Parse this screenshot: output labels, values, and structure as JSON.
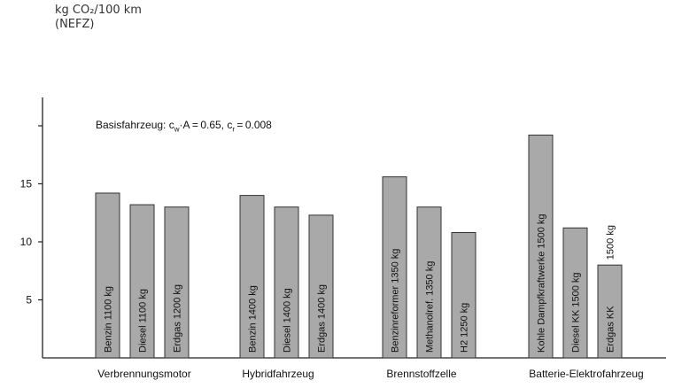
{
  "unit": {
    "line1": "kg CO₂/100 km",
    "line2": "(NEFZ)"
  },
  "note": {
    "prefix": "Basisfahrzeug: c",
    "sub1": "w",
    "mid": "·A = 0.65, c",
    "sub2": "r",
    "suffix": " = 0.008"
  },
  "colors": {
    "bar_fill": "#a9a9a9",
    "bar_stroke": "#333333",
    "axis": "#222222"
  },
  "chart_data": {
    "type": "bar",
    "ylim": [
      0,
      22
    ],
    "yticks": [
      5,
      10,
      15
    ],
    "ytick_labels": [
      "5",
      "10",
      "15"
    ],
    "extra_tick": 20,
    "groups": [
      {
        "name": "Verbrennungsmotor",
        "bars": [
          {
            "label": "Benzin  1100 kg",
            "value": 14.2
          },
          {
            "label": "Diesel  1100 kg",
            "value": 13.2
          },
          {
            "label": "Erdgas  1200 kg",
            "value": 13.0
          }
        ]
      },
      {
        "name": "Hybridfahrzeug",
        "bars": [
          {
            "label": "Benzin  1400 kg",
            "value": 14.0
          },
          {
            "label": "Diesel  1400 kg",
            "value": 13.0
          },
          {
            "label": "Erdgas  1400 kg",
            "value": 12.3
          }
        ]
      },
      {
        "name": "Brennstoffzelle",
        "bars": [
          {
            "label": "Benzinreformer  1350 kg",
            "value": 15.6
          },
          {
            "label": "Methanolref.  1350 kg",
            "value": 13.0
          },
          {
            "label": "H2 1250 kg",
            "value": 10.8
          }
        ]
      },
      {
        "name": "Batterie-Elektrofahrzeug",
        "bars": [
          {
            "label": "Kohle Dampfkraftwerke  1500 kg",
            "value": 19.2
          },
          {
            "label": "Diesel KK  1500 kg",
            "value": 11.2
          },
          {
            "label": "Erdgas KK",
            "value": 8.0,
            "outside_label": "1500 kg"
          }
        ]
      }
    ]
  }
}
